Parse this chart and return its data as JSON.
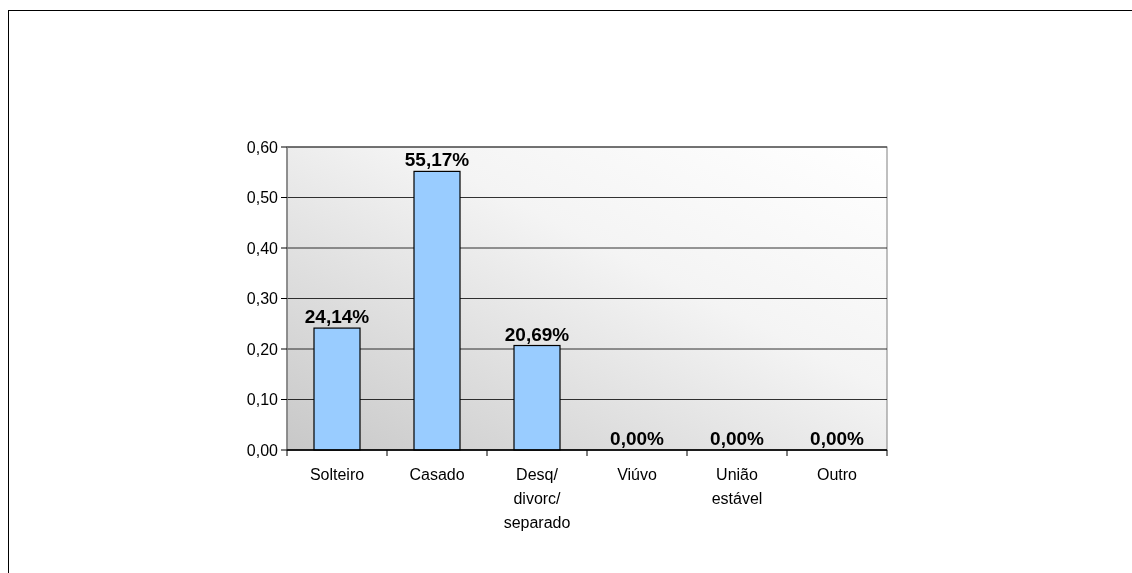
{
  "chart_data": {
    "type": "bar",
    "categories": [
      "Solteiro",
      "Casado",
      "Desq/ divorc/ separado",
      "Viúvo",
      "União estável",
      "Outro"
    ],
    "values": [
      0.2414,
      0.5517,
      0.2069,
      0,
      0,
      0
    ],
    "value_labels": [
      "24,14%",
      "55,17%",
      "20,69%",
      "0,00%",
      "0,00%",
      "0,00%"
    ],
    "color": "#99ccff",
    "ylim": [
      0,
      0.6
    ],
    "yticks": [
      {
        "value": 0,
        "label": "0,00"
      },
      {
        "value": 0.1,
        "label": "0,10"
      },
      {
        "value": 0.2,
        "label": "0,20"
      },
      {
        "value": 0.3,
        "label": "0,30"
      },
      {
        "value": 0.4,
        "label": "0,40"
      },
      {
        "value": 0.5,
        "label": "0,50"
      },
      {
        "value": 0.6,
        "label": "0,60"
      }
    ],
    "grid": "y"
  }
}
